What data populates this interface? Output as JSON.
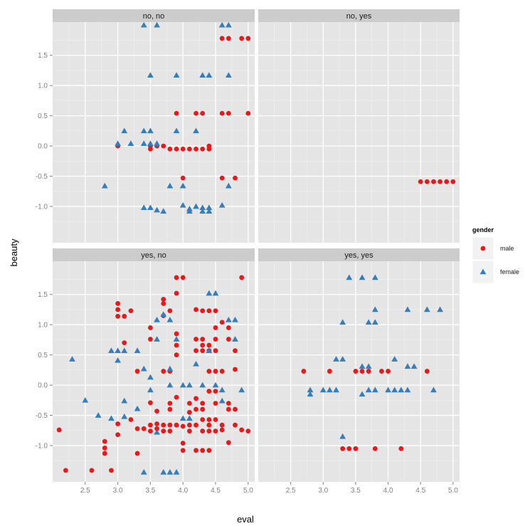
{
  "chart_data": {
    "type": "scatter",
    "xlabel": "eval",
    "ylabel": "beauty",
    "xlim": [
      2.0,
      5.1
    ],
    "ylim": [
      -1.6,
      2.05
    ],
    "x_ticks": [
      2.5,
      3.0,
      3.5,
      4.0,
      4.5,
      5.0
    ],
    "x_tick_labels": [
      "2.5",
      "3.0",
      "3.5",
      "4.0",
      "4.5",
      "5.0"
    ],
    "y_ticks": [
      -1.0,
      -0.5,
      0.0,
      0.5,
      1.0,
      1.5
    ],
    "y_tick_labels": [
      "-1.0",
      "-0.5",
      "0.0",
      "0.5",
      "1.0",
      "1.5"
    ],
    "grid": true,
    "legend": {
      "title": "gender",
      "position": "right",
      "entries": [
        {
          "label": "male",
          "shape": "circle",
          "color": "#E41A1C"
        },
        {
          "label": "female",
          "shape": "triangle",
          "color": "#377EB8"
        }
      ]
    },
    "colors": {
      "male": "#E41A1C",
      "female": "#377EB8",
      "panel": "#E5E5E5",
      "strip": "#CCCCCC",
      "grid": "#F2F2F2"
    },
    "panels": [
      {
        "label": "no, no",
        "male": [
          [
            3.0,
            0.0
          ],
          [
            3.5,
            0.0
          ],
          [
            3.5,
            -0.05
          ],
          [
            3.6,
            0.0
          ],
          [
            3.7,
            0.0
          ],
          [
            3.8,
            -0.05
          ],
          [
            3.9,
            -0.05
          ],
          [
            4.0,
            -0.05
          ],
          [
            4.1,
            -0.05
          ],
          [
            4.2,
            -0.05
          ],
          [
            4.3,
            -0.05
          ],
          [
            4.4,
            -0.05
          ],
          [
            4.4,
            0.0
          ],
          [
            4.0,
            -0.53
          ],
          [
            4.6,
            -0.53
          ],
          [
            4.8,
            -0.53
          ],
          [
            3.9,
            0.54
          ],
          [
            4.2,
            0.54
          ],
          [
            4.3,
            0.54
          ],
          [
            4.6,
            0.54
          ],
          [
            4.7,
            0.54
          ],
          [
            5.0,
            0.54
          ],
          [
            4.6,
            1.78
          ],
          [
            4.7,
            1.78
          ],
          [
            4.9,
            1.78
          ],
          [
            5.0,
            1.78
          ]
        ],
        "female": [
          [
            3.4,
            2.0
          ],
          [
            3.6,
            2.0
          ],
          [
            4.6,
            2.0
          ],
          [
            4.7,
            2.0
          ],
          [
            3.5,
            1.17
          ],
          [
            3.9,
            1.17
          ],
          [
            4.3,
            1.17
          ],
          [
            4.4,
            1.17
          ],
          [
            4.7,
            1.17
          ],
          [
            3.1,
            0.25
          ],
          [
            3.4,
            0.25
          ],
          [
            3.5,
            0.25
          ],
          [
            3.9,
            0.25
          ],
          [
            4.2,
            0.25
          ],
          [
            3.0,
            0.04
          ],
          [
            3.2,
            0.04
          ],
          [
            3.4,
            0.04
          ],
          [
            3.5,
            0.04
          ],
          [
            3.6,
            0.04
          ],
          [
            2.8,
            -0.66
          ],
          [
            3.8,
            -0.66
          ],
          [
            4.0,
            -0.66
          ],
          [
            4.7,
            -0.66
          ],
          [
            3.4,
            -1.02
          ],
          [
            3.5,
            -1.02
          ],
          [
            3.6,
            -1.06
          ],
          [
            3.7,
            -1.08
          ],
          [
            4.0,
            -0.98
          ],
          [
            4.1,
            -1.04
          ],
          [
            4.1,
            -1.08
          ],
          [
            4.2,
            -1.0
          ],
          [
            4.3,
            -1.02
          ],
          [
            4.3,
            -1.08
          ],
          [
            4.4,
            -1.02
          ],
          [
            4.4,
            -1.08
          ],
          [
            4.6,
            -0.98
          ]
        ]
      },
      {
        "label": "no, yes",
        "male": [
          [
            4.5,
            -0.59
          ],
          [
            4.6,
            -0.59
          ],
          [
            4.7,
            -0.59
          ],
          [
            4.8,
            -0.59
          ],
          [
            4.9,
            -0.59
          ],
          [
            5.0,
            -0.59
          ]
        ],
        "female": []
      },
      {
        "label": "yes, no",
        "male": [
          [
            2.1,
            -0.74
          ],
          [
            2.2,
            -1.41
          ],
          [
            2.6,
            -1.41
          ],
          [
            2.9,
            -1.41
          ],
          [
            2.8,
            -0.93
          ],
          [
            2.8,
            -1.04
          ],
          [
            2.8,
            -1.13
          ],
          [
            3.0,
            -0.64
          ],
          [
            3.0,
            -0.82
          ],
          [
            3.0,
            1.35
          ],
          [
            3.0,
            1.25
          ],
          [
            3.0,
            1.14
          ],
          [
            3.1,
            1.14
          ],
          [
            3.2,
            1.23
          ],
          [
            3.1,
            0.7
          ],
          [
            3.2,
            -0.57
          ],
          [
            3.3,
            -0.72
          ],
          [
            3.4,
            -0.72
          ],
          [
            3.3,
            0.23
          ],
          [
            3.3,
            -1.13
          ],
          [
            3.5,
            0.95
          ],
          [
            3.5,
            0.76
          ],
          [
            3.5,
            -0.66
          ],
          [
            3.5,
            -0.76
          ],
          [
            3.5,
            -0.29
          ],
          [
            3.6,
            -0.43
          ],
          [
            3.6,
            -0.64
          ],
          [
            3.6,
            -0.72
          ],
          [
            3.7,
            1.42
          ],
          [
            3.7,
            1.35
          ],
          [
            3.7,
            1.15
          ],
          [
            3.7,
            0.23
          ],
          [
            3.7,
            -0.66
          ],
          [
            3.7,
            -0.76
          ],
          [
            3.8,
            1.23
          ],
          [
            3.8,
            0.23
          ],
          [
            3.8,
            -0.3
          ],
          [
            3.8,
            -0.4
          ],
          [
            3.8,
            -0.66
          ],
          [
            3.8,
            -0.76
          ],
          [
            3.9,
            1.78
          ],
          [
            3.9,
            1.52
          ],
          [
            3.9,
            0.85
          ],
          [
            3.9,
            0.66
          ],
          [
            3.9,
            0.5
          ],
          [
            3.9,
            -0.2
          ],
          [
            3.9,
            -0.66
          ],
          [
            4.0,
            1.78
          ],
          [
            4.0,
            -0.68
          ],
          [
            4.0,
            -0.96
          ],
          [
            4.0,
            -1.08
          ],
          [
            4.1,
            -0.3
          ],
          [
            4.1,
            -0.45
          ],
          [
            4.1,
            -0.66
          ],
          [
            4.1,
            -0.76
          ],
          [
            4.2,
            1.25
          ],
          [
            4.2,
            0.76
          ],
          [
            4.2,
            0.57
          ],
          [
            4.2,
            -0.22
          ],
          [
            4.2,
            -0.4
          ],
          [
            4.2,
            -0.66
          ],
          [
            4.2,
            -1.08
          ],
          [
            4.3,
            1.23
          ],
          [
            4.3,
            0.76
          ],
          [
            4.3,
            0.66
          ],
          [
            4.3,
            0.57
          ],
          [
            4.3,
            -0.3
          ],
          [
            4.3,
            -0.4
          ],
          [
            4.3,
            -0.57
          ],
          [
            4.3,
            -0.76
          ],
          [
            4.3,
            -1.08
          ],
          [
            4.4,
            1.23
          ],
          [
            4.4,
            0.66
          ],
          [
            4.4,
            0.57
          ],
          [
            4.4,
            0.23
          ],
          [
            4.4,
            -0.1
          ],
          [
            4.4,
            -0.57
          ],
          [
            4.4,
            -0.66
          ],
          [
            4.4,
            -0.76
          ],
          [
            4.4,
            -1.08
          ],
          [
            4.5,
            1.23
          ],
          [
            4.5,
            0.95
          ],
          [
            4.5,
            0.76
          ],
          [
            4.5,
            0.57
          ],
          [
            4.5,
            0.23
          ],
          [
            4.5,
            -0.1
          ],
          [
            4.5,
            -0.3
          ],
          [
            4.5,
            -0.57
          ],
          [
            4.5,
            -0.76
          ],
          [
            4.6,
            1.04
          ],
          [
            4.6,
            0.23
          ],
          [
            4.6,
            -0.66
          ],
          [
            4.6,
            -0.74
          ],
          [
            4.7,
            0.95
          ],
          [
            4.7,
            0.76
          ],
          [
            4.7,
            -0.3
          ],
          [
            4.7,
            -0.4
          ],
          [
            4.7,
            -0.95
          ],
          [
            4.8,
            0.57
          ],
          [
            4.8,
            0.26
          ],
          [
            4.8,
            -0.4
          ],
          [
            4.8,
            -0.66
          ],
          [
            4.9,
            1.78
          ],
          [
            4.9,
            -0.74
          ],
          [
            5.0,
            -0.76
          ]
        ],
        "female": [
          [
            2.3,
            0.43
          ],
          [
            2.5,
            -0.25
          ],
          [
            2.7,
            -0.5
          ],
          [
            2.9,
            0.57
          ],
          [
            2.9,
            -0.55
          ],
          [
            3.0,
            0.57
          ],
          [
            3.0,
            0.41
          ],
          [
            3.1,
            -0.26
          ],
          [
            3.1,
            -0.52
          ],
          [
            3.1,
            0.57
          ],
          [
            3.3,
            0.57
          ],
          [
            3.3,
            -0.39
          ],
          [
            3.4,
            0.27
          ],
          [
            3.4,
            -1.44
          ],
          [
            3.5,
            0.13
          ],
          [
            3.5,
            -0.08
          ],
          [
            3.6,
            1.08
          ],
          [
            3.6,
            0.76
          ],
          [
            3.6,
            -0.78
          ],
          [
            3.7,
            -1.44
          ],
          [
            3.7,
            1.17
          ],
          [
            3.8,
            -1.44
          ],
          [
            3.8,
            1.08
          ],
          [
            3.8,
            0.27
          ],
          [
            3.8,
            0.0
          ],
          [
            3.9,
            -1.44
          ],
          [
            3.9,
            0.76
          ],
          [
            4.0,
            0.0
          ],
          [
            4.0,
            -0.55
          ],
          [
            4.1,
            0.0
          ],
          [
            4.1,
            -0.55
          ],
          [
            4.2,
            0.35
          ],
          [
            4.3,
            0.0
          ],
          [
            4.4,
            0.57
          ],
          [
            4.4,
            1.52
          ],
          [
            4.5,
            1.52
          ],
          [
            4.5,
            0.0
          ],
          [
            4.6,
            -0.08
          ],
          [
            4.6,
            -0.26
          ],
          [
            4.7,
            1.08
          ],
          [
            4.8,
            1.08
          ],
          [
            4.8,
            0.76
          ],
          [
            4.9,
            -0.08
          ]
        ]
      },
      {
        "label": "yes, yes",
        "male": [
          [
            2.7,
            0.23
          ],
          [
            3.1,
            0.23
          ],
          [
            3.5,
            0.23
          ],
          [
            3.6,
            0.23
          ],
          [
            3.7,
            0.23
          ],
          [
            3.9,
            0.23
          ],
          [
            4.0,
            0.23
          ],
          [
            4.6,
            0.23
          ],
          [
            3.3,
            -1.05
          ],
          [
            3.4,
            -1.05
          ],
          [
            3.5,
            -1.05
          ],
          [
            3.8,
            -1.05
          ],
          [
            4.2,
            -1.05
          ]
        ],
        "female": [
          [
            2.8,
            -0.08
          ],
          [
            2.8,
            -0.15
          ],
          [
            3.0,
            -0.08
          ],
          [
            3.1,
            -0.08
          ],
          [
            3.2,
            -0.08
          ],
          [
            3.3,
            1.04
          ],
          [
            3.3,
            -0.85
          ],
          [
            3.4,
            1.78
          ],
          [
            3.6,
            1.78
          ],
          [
            3.8,
            1.78
          ],
          [
            3.6,
            0.31
          ],
          [
            3.6,
            -0.15
          ],
          [
            3.7,
            0.31
          ],
          [
            3.7,
            1.04
          ],
          [
            3.8,
            1.04
          ],
          [
            3.8,
            1.25
          ],
          [
            3.7,
            -0.08
          ],
          [
            3.8,
            -0.08
          ],
          [
            4.0,
            -0.08
          ],
          [
            4.1,
            -0.08
          ],
          [
            4.2,
            -0.08
          ],
          [
            4.3,
            -0.08
          ],
          [
            4.1,
            0.43
          ],
          [
            4.3,
            1.25
          ],
          [
            4.3,
            0.31
          ],
          [
            4.4,
            0.31
          ],
          [
            4.6,
            1.25
          ],
          [
            4.8,
            1.25
          ],
          [
            4.7,
            -0.08
          ],
          [
            3.2,
            0.43
          ],
          [
            3.3,
            0.43
          ]
        ]
      }
    ]
  }
}
